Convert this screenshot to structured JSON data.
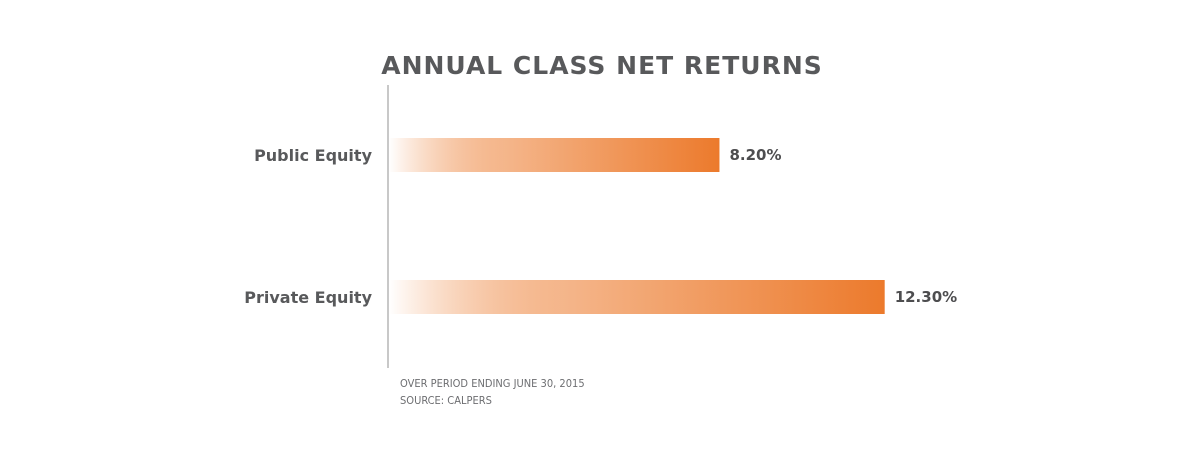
{
  "chart_data": {
    "type": "bar",
    "orientation": "horizontal",
    "title": "ANNUAL CLASS NET RETURNS",
    "categories": [
      "Public Equity",
      "Private Equity"
    ],
    "values": [
      8.2,
      12.3
    ],
    "value_labels": [
      "8.20%",
      "12.30%"
    ],
    "xlim": [
      0,
      14
    ],
    "grid": false,
    "legend": "none",
    "bar_color": "#ec7a2c",
    "bar_fade_color": "#ffffff",
    "axis_color": "#c8c8c8",
    "notes": [
      "OVER PERIOD ENDING JUNE 30, 2015",
      "SOURCE:  CALPERS"
    ]
  }
}
